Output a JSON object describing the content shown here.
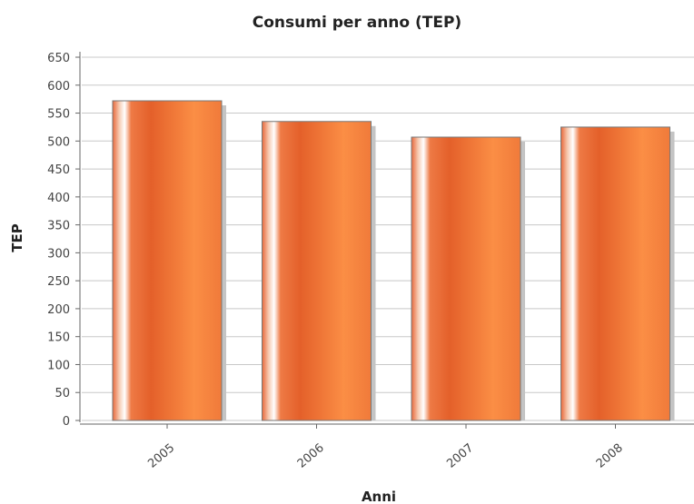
{
  "chart_data": {
    "type": "bar",
    "title": "Consumi per anno (TEP)",
    "xlabel": "Anni",
    "ylabel": "TEP",
    "categories": [
      "2005",
      "2006",
      "2007",
      "2008"
    ],
    "values": [
      572,
      535,
      507,
      525
    ],
    "ylim": [
      0,
      650
    ],
    "yticks": [
      0,
      50,
      100,
      150,
      200,
      250,
      300,
      350,
      400,
      450,
      500,
      550,
      600,
      650
    ],
    "grid": true,
    "legend": "none",
    "colors": {
      "bar_dark": "#e4602a",
      "bar_light": "#fb8e45",
      "highlight": "#ffffff",
      "shadow": "#c4c4c4",
      "grid": "#c8c8c8"
    }
  }
}
